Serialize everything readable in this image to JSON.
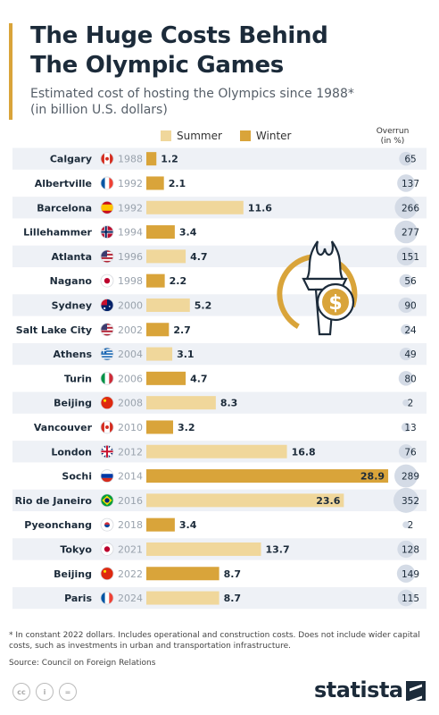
{
  "title_lines": [
    "The Huge Costs Behind",
    "The Olympic Games"
  ],
  "subtitle_lines": [
    "Estimated cost of hosting the Olympics since 1988*",
    "(in billion U.S. dollars)"
  ],
  "legend": {
    "summer": "Summer",
    "winter": "Winter"
  },
  "overrun_header": [
    "Overrun",
    "(in %)"
  ],
  "colors": {
    "summer": "#f0d79b",
    "winter": "#d9a43a",
    "row_alt": "#eef1f6",
    "text_dark": "#1c2b3a",
    "year_text": "#9aa3ad",
    "accent": "#d9a43a"
  },
  "chart_data": {
    "type": "bar",
    "orientation": "horizontal",
    "xlim": [
      0,
      29
    ],
    "rows": [
      {
        "city": "Calgary",
        "year": "1988",
        "season": "Winter",
        "flag": "flag-canada-icon",
        "cost": 1.2,
        "cost_label": "1.2",
        "overrun": 65
      },
      {
        "city": "Albertville",
        "year": "1992",
        "season": "Winter",
        "flag": "flag-france-icon",
        "cost": 2.1,
        "cost_label": "2.1",
        "overrun": 137
      },
      {
        "city": "Barcelona",
        "year": "1992",
        "season": "Summer",
        "flag": "flag-spain-icon",
        "cost": 11.6,
        "cost_label": "11.6",
        "overrun": 266
      },
      {
        "city": "Lillehammer",
        "year": "1994",
        "season": "Winter",
        "flag": "flag-norway-icon",
        "cost": 3.4,
        "cost_label": "3.4",
        "overrun": 277
      },
      {
        "city": "Atlanta",
        "year": "1996",
        "season": "Summer",
        "flag": "flag-usa-icon",
        "cost": 4.7,
        "cost_label": "4.7",
        "overrun": 151
      },
      {
        "city": "Nagano",
        "year": "1998",
        "season": "Winter",
        "flag": "flag-japan-icon",
        "cost": 2.2,
        "cost_label": "2.2",
        "overrun": 56
      },
      {
        "city": "Sydney",
        "year": "2000",
        "season": "Summer",
        "flag": "flag-australia-icon",
        "cost": 5.2,
        "cost_label": "5.2",
        "overrun": 90
      },
      {
        "city": "Salt Lake City",
        "year": "2002",
        "season": "Winter",
        "flag": "flag-usa-icon",
        "cost": 2.7,
        "cost_label": "2.7",
        "overrun": 24
      },
      {
        "city": "Athens",
        "year": "2004",
        "season": "Summer",
        "flag": "flag-greece-icon",
        "cost": 3.1,
        "cost_label": "3.1",
        "overrun": 49
      },
      {
        "city": "Turin",
        "year": "2006",
        "season": "Winter",
        "flag": "flag-italy-icon",
        "cost": 4.7,
        "cost_label": "4.7",
        "overrun": 80
      },
      {
        "city": "Beijing",
        "year": "2008",
        "season": "Summer",
        "flag": "flag-china-icon",
        "cost": 8.3,
        "cost_label": "8.3",
        "overrun": 2
      },
      {
        "city": "Vancouver",
        "year": "2010",
        "season": "Winter",
        "flag": "flag-canada-icon",
        "cost": 3.2,
        "cost_label": "3.2",
        "overrun": 13
      },
      {
        "city": "London",
        "year": "2012",
        "season": "Summer",
        "flag": "flag-uk-icon",
        "cost": 16.8,
        "cost_label": "16.8",
        "overrun": 76
      },
      {
        "city": "Sochi",
        "year": "2014",
        "season": "Winter",
        "flag": "flag-russia-icon",
        "cost": 28.9,
        "cost_label": "28.9",
        "overrun": 289
      },
      {
        "city": "Rio de Janeiro",
        "year": "2016",
        "season": "Summer",
        "flag": "flag-brazil-icon",
        "cost": 23.6,
        "cost_label": "23.6",
        "overrun": 352
      },
      {
        "city": "Pyeonchang",
        "year": "2018",
        "season": "Winter",
        "flag": "flag-south-korea-icon",
        "cost": 3.4,
        "cost_label": "3.4",
        "overrun": 2
      },
      {
        "city": "Tokyo",
        "year": "2021",
        "season": "Summer",
        "flag": "flag-japan-icon",
        "cost": 13.7,
        "cost_label": "13.7",
        "overrun": 128
      },
      {
        "city": "Beijing",
        "year": "2022",
        "season": "Winter",
        "flag": "flag-china-icon",
        "cost": 8.7,
        "cost_label": "8.7",
        "overrun": 149
      },
      {
        "city": "Paris",
        "year": "2024",
        "season": "Summer",
        "flag": "flag-france-icon",
        "cost": 8.7,
        "cost_label": "8.7",
        "overrun": 115
      }
    ]
  },
  "illustration": "torch-dollar-icon",
  "footnote": "* In constant 2022 dollars. Includes operational and construction costs. Does not include wider capital costs, such as investments in urban and transportation infrastructure.",
  "source": "Source: Council on Foreign Relations",
  "brand": "statista",
  "license_icons": [
    "cc-icon",
    "attribution-icon",
    "no-derivatives-icon"
  ]
}
